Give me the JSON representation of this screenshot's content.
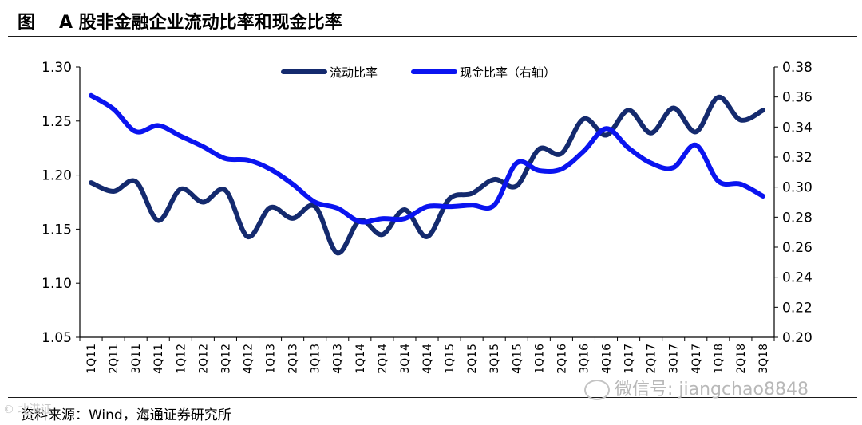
{
  "header": {
    "fig_label": "图",
    "title": "A 股非金融企业流动比率和现金比率"
  },
  "footer": {
    "source": "资料来源：Wind，海通证券研究所",
    "watermark": "微信号: jiangchao8848",
    "watermark_left": "© 北港证"
  },
  "colors": {
    "current_ratio": "#142a6e",
    "cash_ratio": "#0a14f0"
  },
  "chart_data": {
    "type": "line",
    "categories": [
      "1Q11",
      "2Q11",
      "3Q11",
      "4Q11",
      "1Q12",
      "2Q12",
      "3Q12",
      "4Q12",
      "1Q13",
      "2Q13",
      "3Q13",
      "4Q13",
      "1Q14",
      "2Q14",
      "3Q14",
      "4Q14",
      "1Q15",
      "2Q15",
      "3Q15",
      "4Q15",
      "1Q16",
      "2Q16",
      "3Q16",
      "4Q16",
      "1Q17",
      "2Q17",
      "3Q17",
      "4Q17",
      "1Q18",
      "2Q18",
      "3Q18"
    ],
    "legend_position": "top-center",
    "grid": false,
    "y_left": {
      "min": 1.05,
      "max": 1.3,
      "ticks": [
        "1.05",
        "1.10",
        "1.15",
        "1.20",
        "1.25",
        "1.30"
      ]
    },
    "y_right": {
      "min": 0.2,
      "max": 0.38,
      "ticks": [
        "0.20",
        "0.22",
        "0.24",
        "0.26",
        "0.28",
        "0.30",
        "0.32",
        "0.34",
        "0.36",
        "0.38"
      ]
    },
    "series": [
      {
        "name": "流动比率",
        "axis": "left",
        "values": [
          1.193,
          1.185,
          1.194,
          1.158,
          1.187,
          1.175,
          1.186,
          1.143,
          1.17,
          1.16,
          1.171,
          1.128,
          1.158,
          1.145,
          1.168,
          1.143,
          1.178,
          1.183,
          1.196,
          1.19,
          1.224,
          1.22,
          1.252,
          1.237,
          1.26,
          1.239,
          1.262,
          1.24,
          1.272,
          1.251,
          1.26
        ]
      },
      {
        "name": "现金比率（右轴）",
        "axis": "right",
        "values": [
          0.361,
          0.352,
          0.337,
          0.341,
          0.334,
          0.327,
          0.319,
          0.318,
          0.312,
          0.302,
          0.29,
          0.286,
          0.277,
          0.279,
          0.279,
          0.287,
          0.287,
          0.288,
          0.288,
          0.316,
          0.311,
          0.312,
          0.324,
          0.339,
          0.326,
          0.316,
          0.313,
          0.328,
          0.304,
          0.302,
          0.294
        ]
      }
    ]
  }
}
